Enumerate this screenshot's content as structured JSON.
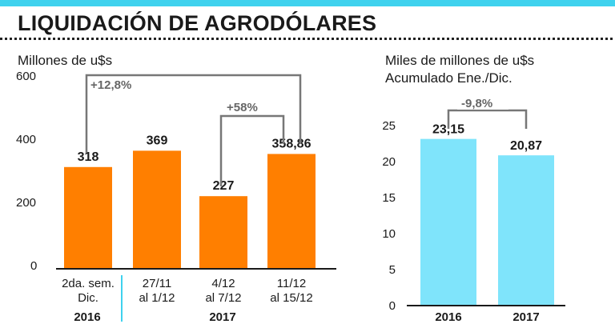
{
  "header": {
    "title": "LIQUIDACIÓN DE AGRODÓLARES"
  },
  "colors": {
    "orange": "#ff7f00",
    "cyan": "#7fe4fb",
    "accent": "#3fd2ee",
    "bracket": "#777777"
  },
  "chart_data": [
    {
      "type": "bar",
      "ylabel": "Millones de u$s",
      "ylim": [
        0,
        600
      ],
      "yticks": [
        "600",
        "400",
        "200",
        "0"
      ],
      "categories": [
        "2da. sem. Dic.",
        "27/11 al 1/12",
        "4/12 al 7/12",
        "11/12 al 15/12"
      ],
      "category_lines": [
        [
          "2da. sem.",
          "Dic."
        ],
        [
          "27/11",
          "al 1/12"
        ],
        [
          "4/12",
          "al 7/12"
        ],
        [
          "11/12",
          "al 15/12"
        ]
      ],
      "groups": [
        "2016",
        "2017"
      ],
      "values": [
        318,
        369,
        227,
        358.86
      ],
      "value_labels": [
        "318",
        "369",
        "227",
        "358,86"
      ],
      "annotations": [
        "+12,8%",
        "+58%"
      ],
      "color": "#ff7f00"
    },
    {
      "type": "bar",
      "ylabel": "Miles de millones de u$s",
      "subtitle": "Acumulado Ene./Dic.",
      "ylim": [
        0,
        25
      ],
      "yticks": [
        "25",
        "20",
        "15",
        "10",
        "5",
        "0"
      ],
      "categories": [
        "2016",
        "2017"
      ],
      "values": [
        23.15,
        20.87
      ],
      "value_labels": [
        "23,15",
        "20,87"
      ],
      "annotations": [
        "-9,8%"
      ],
      "color": "#7fe4fb"
    }
  ]
}
